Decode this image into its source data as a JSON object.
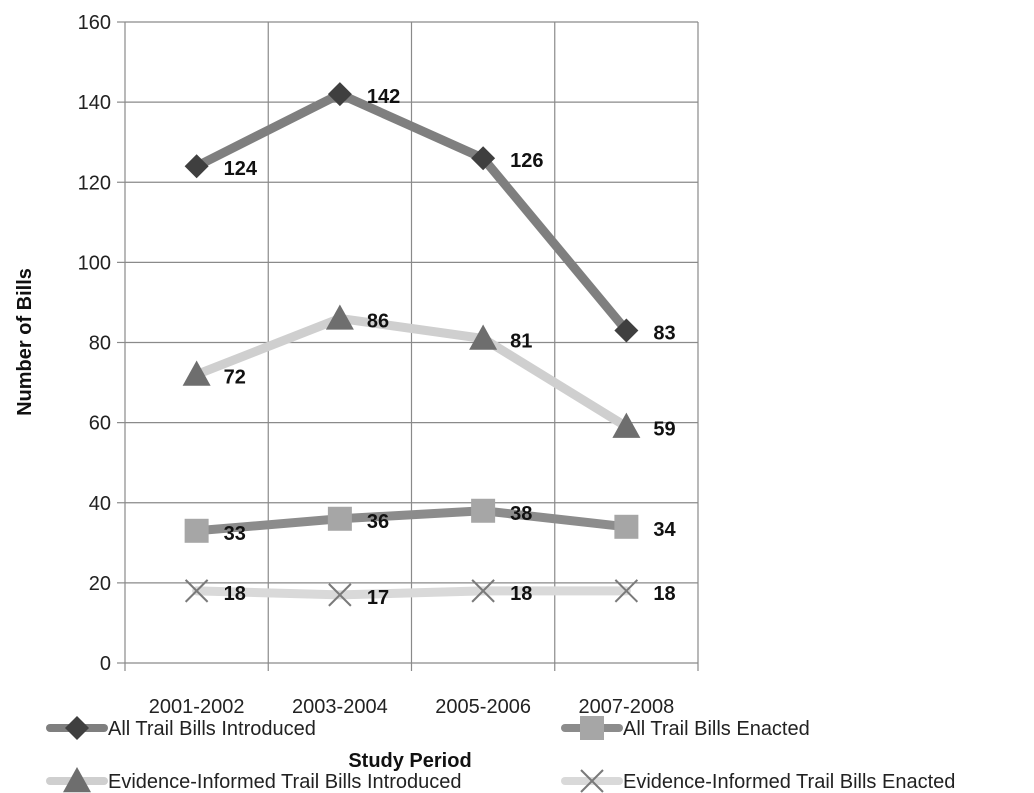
{
  "chart_data": {
    "type": "line",
    "categories": [
      "2001-2002",
      "2003-2004",
      "2005-2006",
      "2007-2008"
    ],
    "xlabel": "Study Period",
    "ylabel": "Number of Bills",
    "ylim": [
      0,
      160
    ],
    "yticks": [
      0,
      20,
      40,
      60,
      80,
      100,
      120,
      140,
      160
    ],
    "grid": true,
    "legend_position": "bottom",
    "series": [
      {
        "name": "All Trail Bills Introduced",
        "values": [
          124,
          142,
          126,
          83
        ],
        "marker": "diamond",
        "color": "#7f7f7f",
        "marker_color": "#3f3f3f"
      },
      {
        "name": "All Trail Bills Enacted",
        "values": [
          33,
          36,
          38,
          34
        ],
        "marker": "square",
        "color": "#8c8c8c",
        "marker_color": "#a6a6a6"
      },
      {
        "name": "Evidence-Informed Trail Bills Introduced",
        "values": [
          72,
          86,
          81,
          59
        ],
        "marker": "triangle",
        "color": "#cfcfcf",
        "marker_color": "#6e6e6e"
      },
      {
        "name": "Evidence-Informed Trail Bills Enacted",
        "values": [
          18,
          17,
          18,
          18
        ],
        "marker": "x",
        "color": "#d9d9d9",
        "marker_color": "#7a7a7a"
      }
    ]
  }
}
